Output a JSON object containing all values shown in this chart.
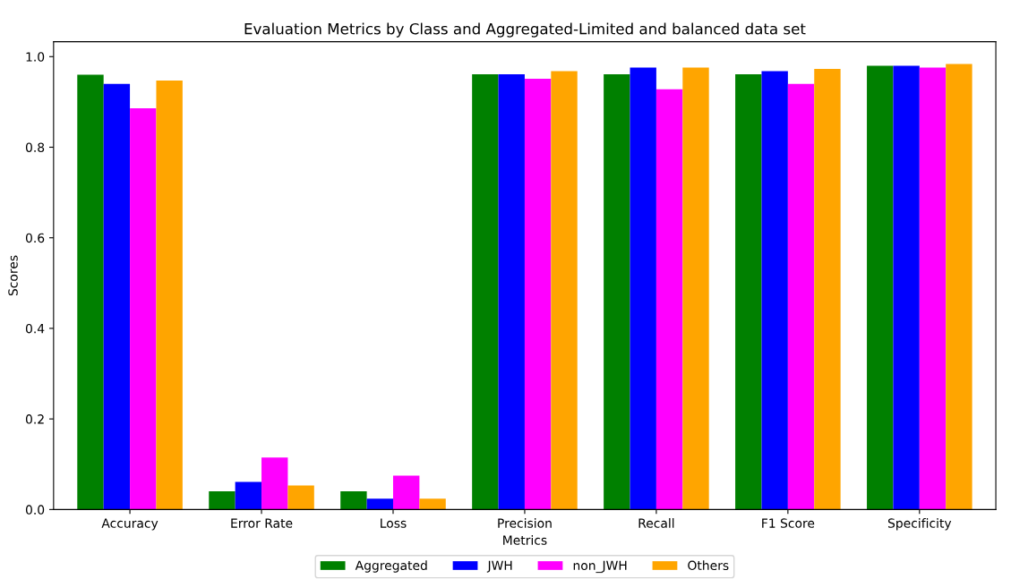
{
  "chart_data": {
    "type": "bar",
    "title": "Evaluation Metrics by Class and Aggregated-Limited and balanced data set",
    "xlabel": "Metrics",
    "ylabel": "Scores",
    "categories": [
      "Accuracy",
      "Error Rate",
      "Loss",
      "Precision",
      "Recall",
      "F1 Score",
      "Specificity"
    ],
    "series": [
      {
        "name": "Aggregated",
        "color": "#008000",
        "values": [
          0.96,
          0.04,
          0.04,
          0.961,
          0.961,
          0.961,
          0.98
        ]
      },
      {
        "name": "JWH",
        "color": "#0000ff",
        "values": [
          0.94,
          0.061,
          0.024,
          0.961,
          0.976,
          0.968,
          0.98
        ]
      },
      {
        "name": "non_JWH",
        "color": "#ff00ff",
        "values": [
          0.886,
          0.115,
          0.075,
          0.951,
          0.928,
          0.94,
          0.976
        ]
      },
      {
        "name": "Others",
        "color": "#ffa500",
        "values": [
          0.947,
          0.053,
          0.024,
          0.968,
          0.976,
          0.973,
          0.984
        ]
      }
    ],
    "ylim": [
      0,
      1.033
    ],
    "yticks": [
      {
        "value": 0,
        "label": "0.0"
      },
      0.2,
      0.4,
      0.6,
      0.8,
      {
        "value": 1,
        "label": "1.0"
      }
    ],
    "grid": false,
    "legend": "bottom"
  }
}
